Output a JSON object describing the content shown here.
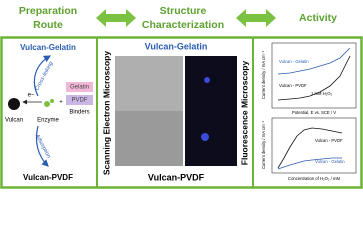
{
  "headers": [
    {
      "lines": [
        "Preparation",
        "Route"
      ]
    },
    {
      "lines": [
        "Structure",
        "Characterization"
      ]
    },
    {
      "lines": [
        "Activity"
      ]
    }
  ],
  "preparation": {
    "top": "Vulcan-Gelatin",
    "crosslinking": "Cross-linking",
    "electron": "e−",
    "vulcan": "Vulcan",
    "enzyme": "Enzyme",
    "gelatin": "Gelatin",
    "pvdf": "PVDF",
    "binders": "Binders",
    "adsorption": "Adsorption",
    "bottom": "Vulcan-PVDF"
  },
  "characterization": {
    "sem": "Scanning Electron Microscopy",
    "fluorescence": "Fluorescence Microscopy",
    "top": "Vulcan-Gelatin",
    "bottom": "Vulcan-PVDF"
  },
  "activity": {
    "chart1": {
      "legend": [
        "Vulcan - Gelatin",
        "Vulcan - PVDF"
      ],
      "note": "1 mM H₂O₂",
      "xlabel": "Potential, E vs. SCE / V",
      "ylabel": "Current density / mA cm⁻²"
    },
    "chart2": {
      "legend": [
        "Vulcan - PVDF",
        "Vulcan - Gelatin"
      ],
      "xlabel": "Concentration of H₂O₂ / mM",
      "ylabel": "Current density / mA cm⁻²"
    }
  }
}
